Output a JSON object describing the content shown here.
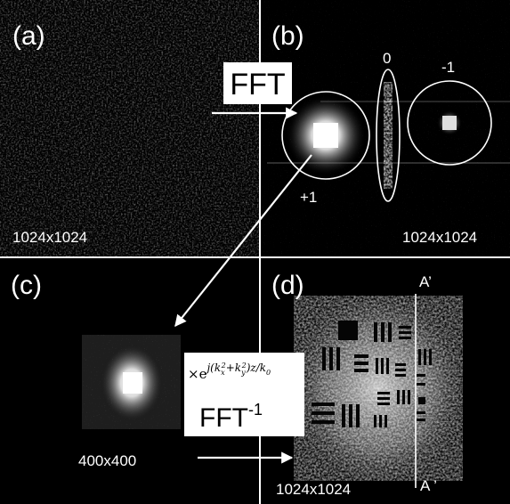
{
  "panels": {
    "a": {
      "label": "(a)",
      "size": "1024x1024"
    },
    "b": {
      "label": "(b)",
      "size": "1024x1024",
      "orders": {
        "plus_one": "+1",
        "zero": "0",
        "minus_one": "-1"
      }
    },
    "c": {
      "label": "(c)",
      "size": "400x400"
    },
    "d": {
      "label": "(d)",
      "size": "1024x1024",
      "line_top": "A’",
      "line_bottom": "A ’"
    }
  },
  "operations": {
    "forward": "FFT",
    "inverse_base": "FFT",
    "inverse_superscript": "-1",
    "phase_factor": {
      "times": "×e",
      "exponent": "j(k",
      "kx": "x",
      "ky": "y",
      "tail": ")z/k",
      "k0": "0",
      "sq": "2",
      "plus": "+k"
    }
  },
  "colors": {
    "background": "#000000",
    "divider": "#ffffff",
    "annotation": "#ffffff",
    "label_box": "#ffffff"
  }
}
